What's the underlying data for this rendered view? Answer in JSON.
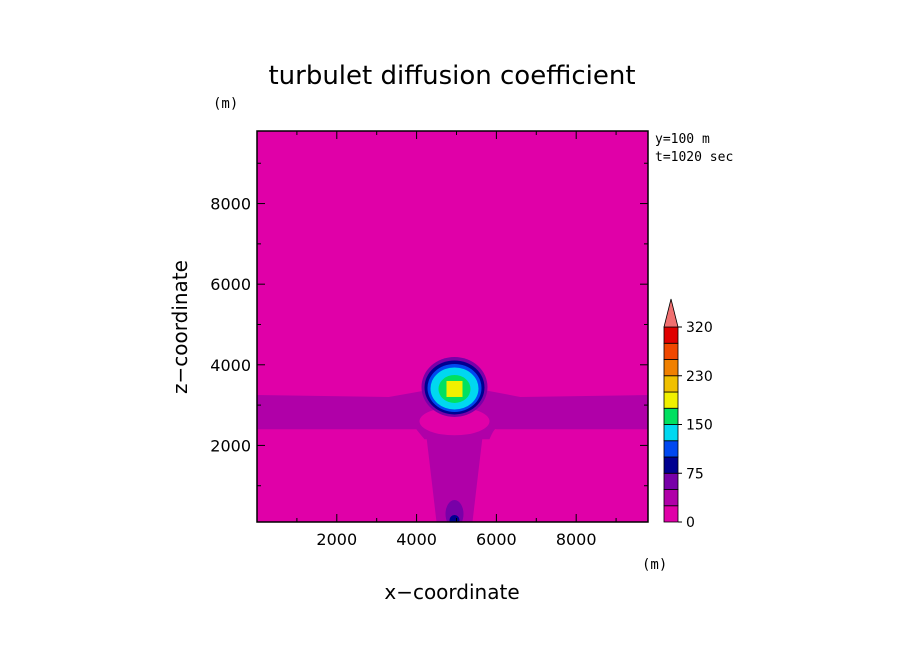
{
  "chart_data": {
    "type": "heatmap",
    "title": "turbulet diffusion coefficient",
    "xlabel": "x−coordinate",
    "ylabel": "z−coordinate",
    "x_unit": "(m)",
    "y_unit": "(m)",
    "xlim": [
      0,
      9800
    ],
    "ylim": [
      100,
      9800
    ],
    "x_ticks": [
      2000,
      4000,
      6000,
      8000
    ],
    "y_ticks": [
      2000,
      4000,
      6000,
      8000
    ],
    "annotations": [
      "y=100 m",
      "t=1020 sec"
    ],
    "colorbar": {
      "levels": [
        0,
        25,
        50,
        75,
        100,
        125,
        150,
        175,
        200,
        230,
        260,
        290,
        320
      ],
      "tick_labels": [
        "0",
        "75",
        "150",
        "230",
        "320"
      ],
      "tick_values": [
        0,
        75,
        150,
        230,
        320
      ],
      "colors": [
        "#e000a8",
        "#b000a8",
        "#7800a8",
        "#000090",
        "#0048f0",
        "#00d8f0",
        "#00e060",
        "#f0f000",
        "#f0c000",
        "#f08000",
        "#f04800",
        "#e00000"
      ],
      "extend_color": "#f07070"
    },
    "features": [
      {
        "name": "background",
        "value": 0
      },
      {
        "name": "layer",
        "z_range": [
          2400,
          3300
        ],
        "value": 25
      },
      {
        "name": "plume-column",
        "x_center": 4950,
        "z_range": [
          100,
          2400
        ],
        "value": 25
      },
      {
        "name": "plume-core",
        "x_center": 4950,
        "z_center": 3450,
        "max_value": 200
      }
    ]
  }
}
